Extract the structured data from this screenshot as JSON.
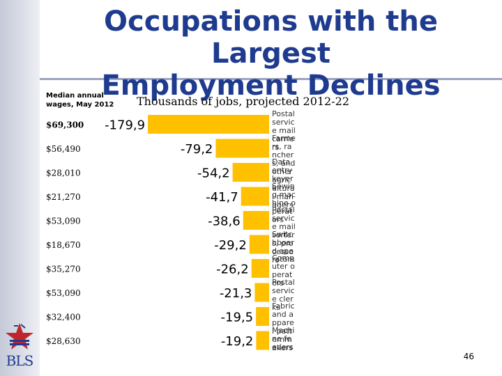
{
  "slide": {
    "title_line1": "Occupations with the Largest",
    "title_line2": "Employment Declines",
    "wage_header": "Median annual wages, May 2012",
    "jobs_header": "Thousands of jobs, projected 2012-22",
    "page_number": "46",
    "logo_text": "BLS"
  },
  "chart_data": {
    "type": "bar",
    "orientation": "horizontal",
    "title": "Thousands of jobs, projected 2012-22",
    "categories": [
      "Postal service mail carriers",
      "Farmers, ranchers, and other agricultural managers",
      "Data entry keyers",
      "Sewing machine operators",
      "Postal service mail sorters, processors, and processing machine operators",
      "Switchboard operators, including answering service",
      "Computer operators",
      "Postal service clerks",
      "Fabric and apparel patternmakers",
      "Machine feeders and offbearers"
    ],
    "occupation_text": [
      "Postal service mail carriers",
      "Farmers, ranchers, and other agricultural managers",
      "Data entry keyers",
      "Sewing machine operators",
      "Postal service mail sorters, processors",
      "Switchboard operators",
      "Computer operators",
      "Postal service clerks",
      "Fabric and apparel patternmakers",
      "Machine feeders and offbearers"
    ],
    "values": [
      -179.9,
      -79.2,
      -54.2,
      -41.7,
      -38.6,
      -29.2,
      -26.2,
      -21.3,
      -19.5,
      -19.2
    ],
    "value_labels": [
      "-179,9",
      "-79,2",
      "-54,2",
      "-41,7",
      "-38,6",
      "-29,2",
      "-26,2",
      "-21,3",
      "-19,5",
      "-19,2"
    ],
    "wages": [
      "$69,300",
      "$56,490",
      "$28,010",
      "$21,270",
      "$53,090",
      "$18,670",
      "$35,270",
      "$53,090",
      "$32,400",
      "$28,630"
    ],
    "xlim": [
      -180,
      0
    ],
    "bar_color": "#ffc000",
    "grid": false
  },
  "colors": {
    "title": "#1f3b8f",
    "bar": "#ffc000",
    "rail": "#c5cad8",
    "rule": "#9aa3bf"
  },
  "icons": {
    "logo": "bls-star-logo-icon"
  }
}
